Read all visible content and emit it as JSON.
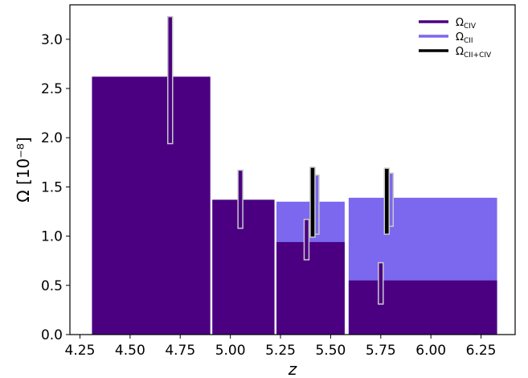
{
  "chart_data": {
    "type": "bar",
    "xlabel": "z",
    "ylabel": "Ω [10⁻⁸]",
    "xlim": [
      4.2,
      6.42
    ],
    "ylim": [
      0,
      3.35
    ],
    "xticks": [
      "4.25",
      "4.50",
      "4.75",
      "5.00",
      "5.25",
      "5.50",
      "5.75",
      "6.00",
      "6.25"
    ],
    "yticks": [
      "0.0",
      "0.5",
      "1.0",
      "1.5",
      "2.0",
      "2.5",
      "3.0"
    ],
    "grid": false,
    "legend_position": "top-right",
    "legend": [
      {
        "label": "Ω",
        "sub": "CIV",
        "color": "#4b0082"
      },
      {
        "label": "Ω",
        "sub": "CII",
        "color": "#7b68ee"
      },
      {
        "label": "Ω",
        "sub": "CII+CIV",
        "color": "#000000"
      }
    ],
    "series": [
      {
        "name": "CIV",
        "color": "#4b0082",
        "bins": [
          {
            "x0": 4.31,
            "x1": 4.9,
            "value": 2.62,
            "err_x": 4.7,
            "err_low": 1.94,
            "err_high": 3.23
          },
          {
            "x0": 4.91,
            "x1": 5.22,
            "value": 1.37,
            "err_x": 5.05,
            "err_low": 1.08,
            "err_high": 1.67
          },
          {
            "x0": 5.23,
            "x1": 5.57,
            "value": 0.94,
            "err_x": 5.38,
            "err_low": 0.76,
            "err_high": 1.17
          },
          {
            "x0": 5.59,
            "x1": 6.33,
            "value": 0.55,
            "err_x": 5.75,
            "err_low": 0.31,
            "err_high": 0.73
          }
        ]
      },
      {
        "name": "CII",
        "color": "#7b68ee",
        "bins": [
          {
            "x0": 5.23,
            "x1": 5.57,
            "value": 1.35,
            "err_x": 5.43,
            "err_low": 1.02,
            "err_high": 1.62
          },
          {
            "x0": 5.59,
            "x1": 6.33,
            "value": 1.39,
            "err_x": 5.8,
            "err_low": 1.1,
            "err_high": 1.64
          }
        ]
      },
      {
        "name": "CII+CIV",
        "color": "#000000",
        "bins": [
          {
            "err_x": 5.41,
            "err_low": 0.99,
            "err_high": 1.7
          },
          {
            "err_x": 5.78,
            "err_low": 1.02,
            "err_high": 1.69
          }
        ]
      }
    ]
  }
}
